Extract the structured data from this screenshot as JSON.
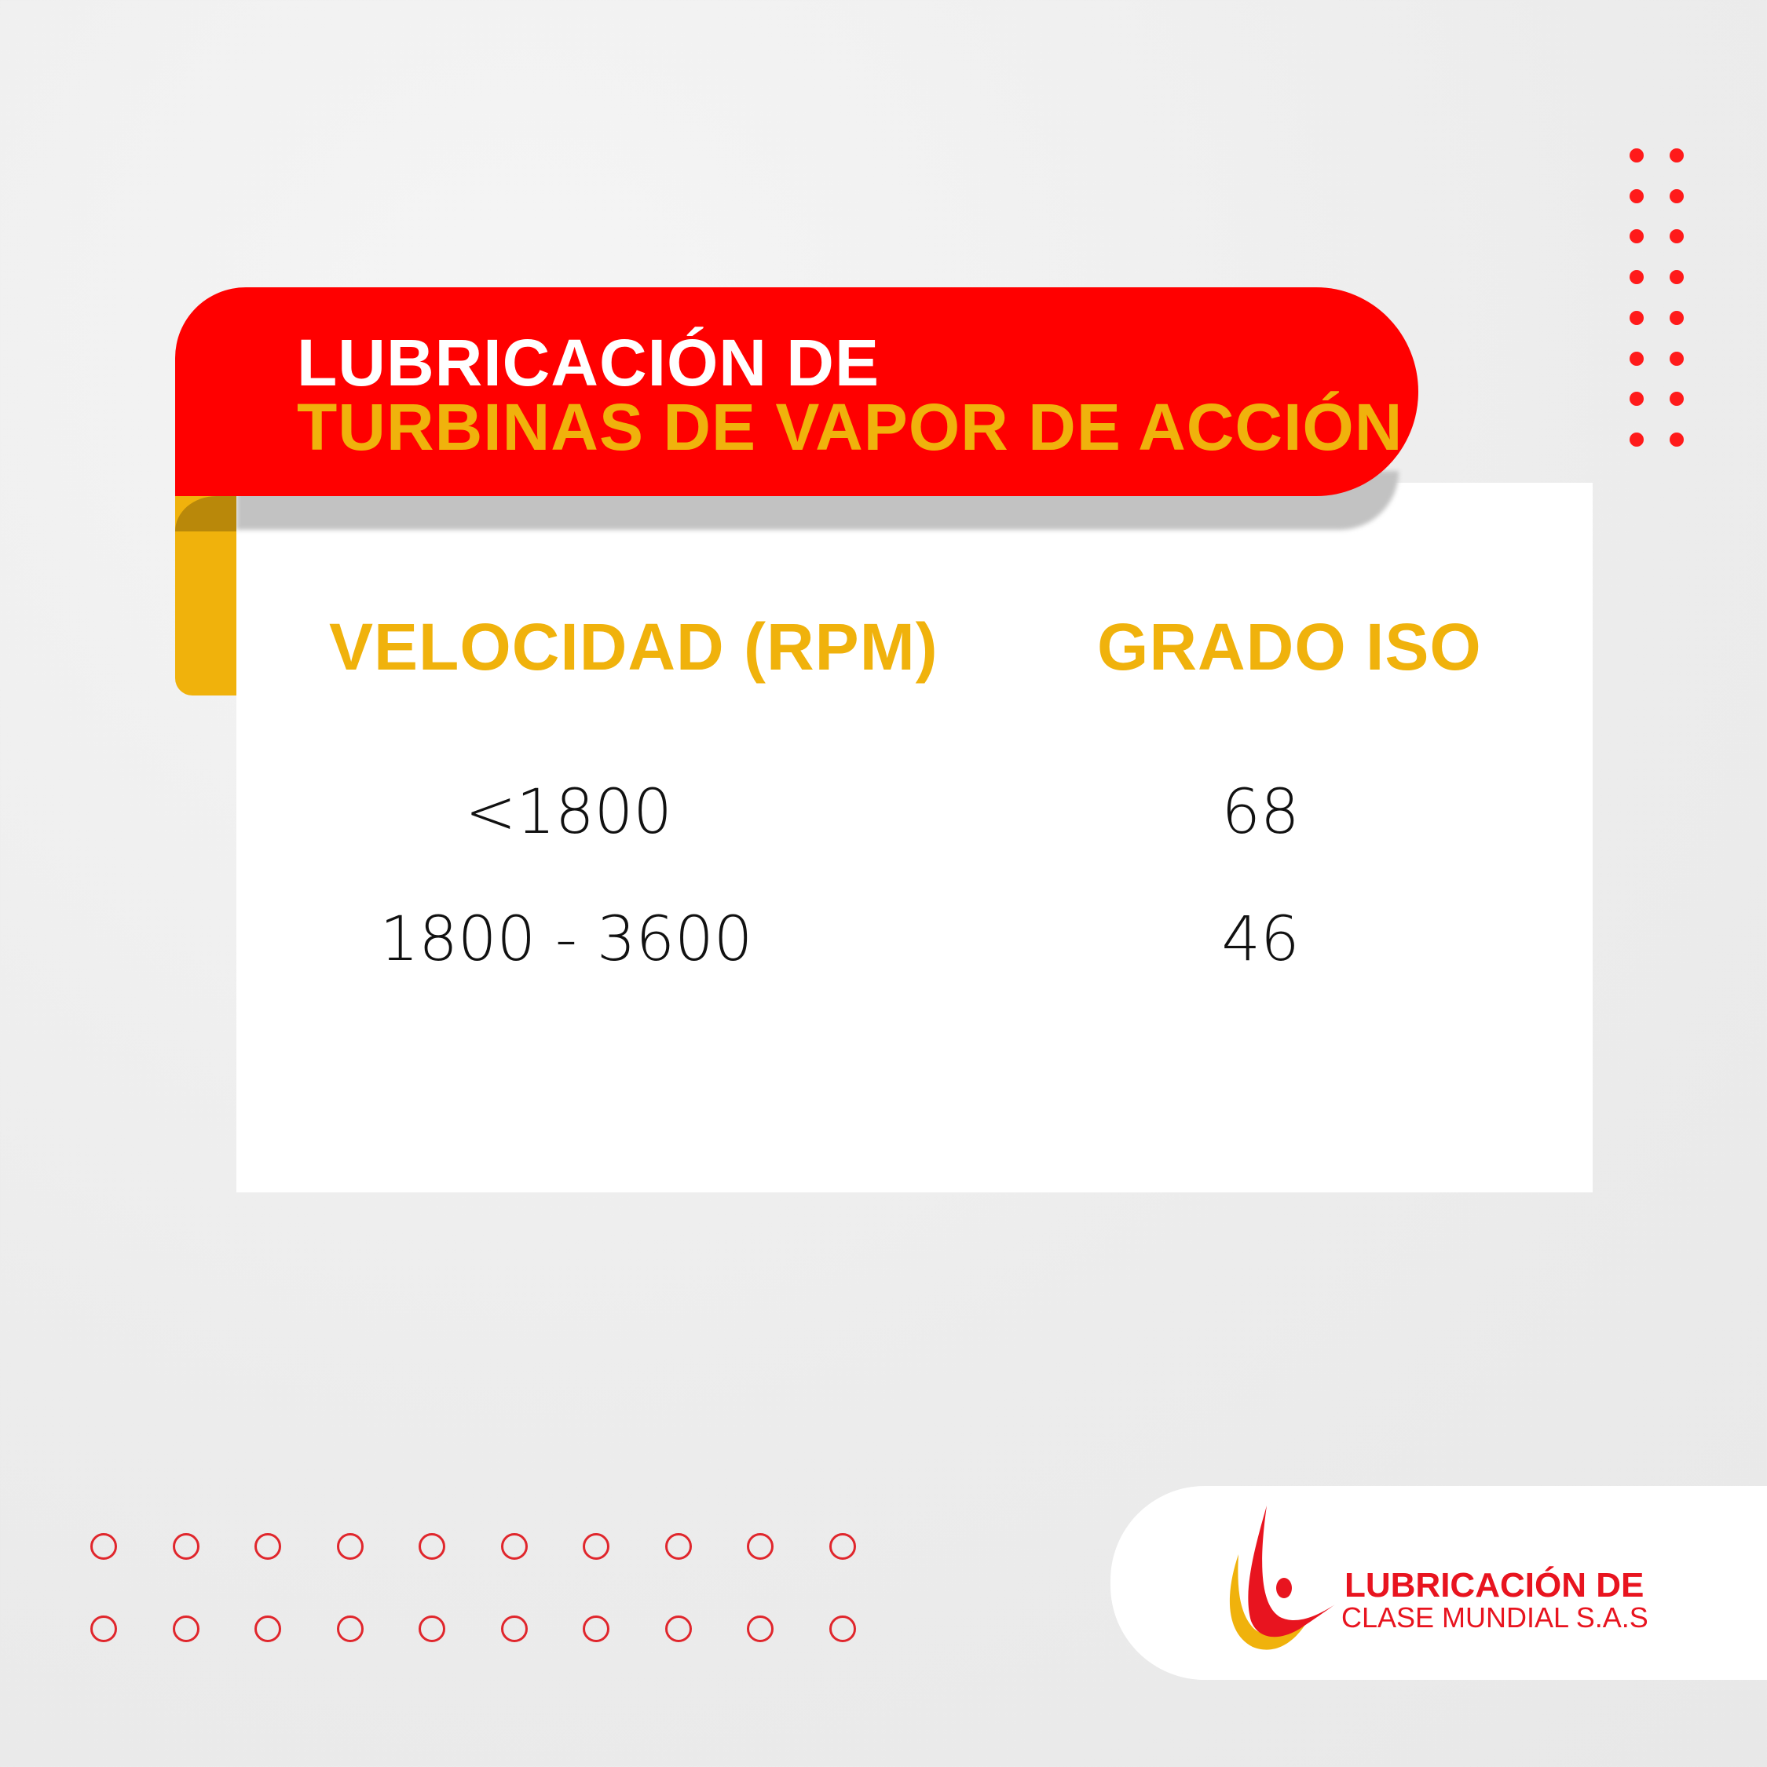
{
  "title": {
    "line1": "LUBRICACIÓN DE",
    "line2": "TURBINAS DE VAPOR DE ACCIÓN"
  },
  "table": {
    "headers": [
      "VELOCIDAD (RPM)",
      "GRADO ISO"
    ],
    "rows": [
      [
        "<1800",
        "68"
      ],
      [
        "1800 - 3600",
        "46"
      ]
    ]
  },
  "logo": {
    "line1": "LUBRICACIÓN DE",
    "line2": "CLASE MUNDIAL S.A.S"
  },
  "colors": {
    "red": "#ff0000",
    "yellow": "#f0b20c",
    "logo_red": "#e8141f"
  }
}
